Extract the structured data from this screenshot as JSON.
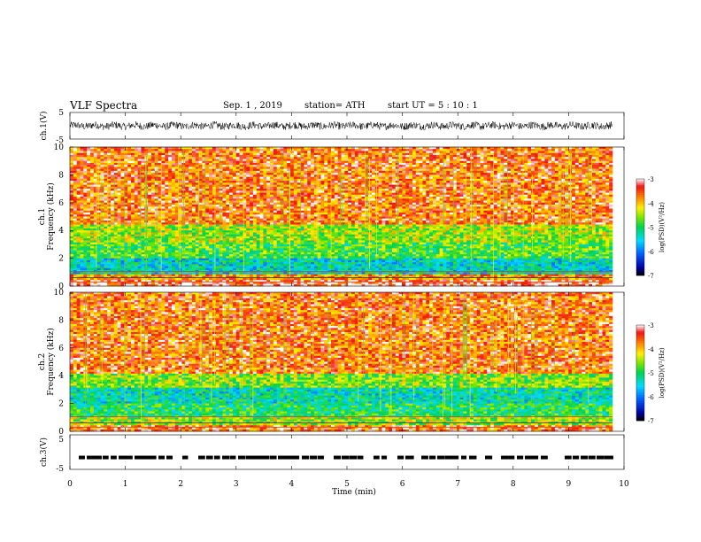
{
  "header": {
    "title": "VLF  Spectra",
    "date": "Sep. 1  , 2019",
    "station": "station= ATH",
    "start": "start  UT  =   5  : 10 : 1"
  },
  "chart_data": [
    {
      "type": "line",
      "panel": "ch1-waveform",
      "ylabel": "ch.1(V)",
      "ylim": [
        -5,
        5
      ],
      "yticks": [
        "5",
        "-5"
      ],
      "description_values": "noisy waveform around 0 V, amplitude roughly ±1.5 V over 0–9.8 min"
    },
    {
      "type": "heatmap",
      "panel": "ch1-spectrogram",
      "ylabel_top": "ch.1",
      "ylabel": "Frequency  (kHz)",
      "ylim": [
        0,
        10
      ],
      "yticks": [
        "0",
        "2",
        "4",
        "6",
        "8",
        "10"
      ],
      "colorbar": {
        "label": "log(PSD)(V²/Hz)",
        "range": [
          -7,
          -3
        ],
        "ticks": [
          "-3",
          "-4",
          "-5",
          "-6",
          "-7"
        ]
      },
      "bands_khz": [
        {
          "from": 0,
          "to": 0.4,
          "level": -3.2
        },
        {
          "from": 0.4,
          "to": 0.9,
          "level": -3.8
        },
        {
          "from": 0.9,
          "to": 2.0,
          "level": -5.4
        },
        {
          "from": 2.0,
          "to": 3.2,
          "level": -4.8
        },
        {
          "from": 3.2,
          "to": 4.5,
          "level": -4.5
        },
        {
          "from": 4.5,
          "to": 10,
          "level": -3.6
        }
      ]
    },
    {
      "type": "heatmap",
      "panel": "ch2-spectrogram",
      "ylabel_top": "ch.2",
      "ylabel": "Frequency  (kHz)",
      "ylim": [
        0,
        10
      ],
      "yticks": [
        "0",
        "2",
        "4",
        "6",
        "8",
        "10"
      ],
      "colorbar": {
        "label": "log(PSD)(V²/Hz)",
        "range": [
          -7,
          -3
        ],
        "ticks": [
          "-3",
          "-4",
          "-5",
          "-6",
          "-7"
        ]
      },
      "bands_khz": [
        {
          "from": 0,
          "to": 0.5,
          "level": -3.5
        },
        {
          "from": 0.5,
          "to": 1.0,
          "level": -4.5
        },
        {
          "from": 1.0,
          "to": 2.0,
          "level": -5.0
        },
        {
          "from": 2.0,
          "to": 3.2,
          "level": -5.3
        },
        {
          "from": 3.2,
          "to": 4.2,
          "level": -4.6
        },
        {
          "from": 4.2,
          "to": 10,
          "level": -3.6
        }
      ]
    },
    {
      "type": "scatter",
      "panel": "ch3-waveform",
      "ylabel": "ch.3(V)",
      "ylim": [
        -5,
        5
      ],
      "yticks": [
        "5",
        "-5"
      ],
      "xlabel": "Time  (min)",
      "xlim": [
        0,
        10
      ],
      "xticks": [
        "0",
        "1",
        "2",
        "3",
        "4",
        "5",
        "6",
        "7",
        "8",
        "9",
        "10"
      ],
      "level_v": -1.5
    }
  ]
}
